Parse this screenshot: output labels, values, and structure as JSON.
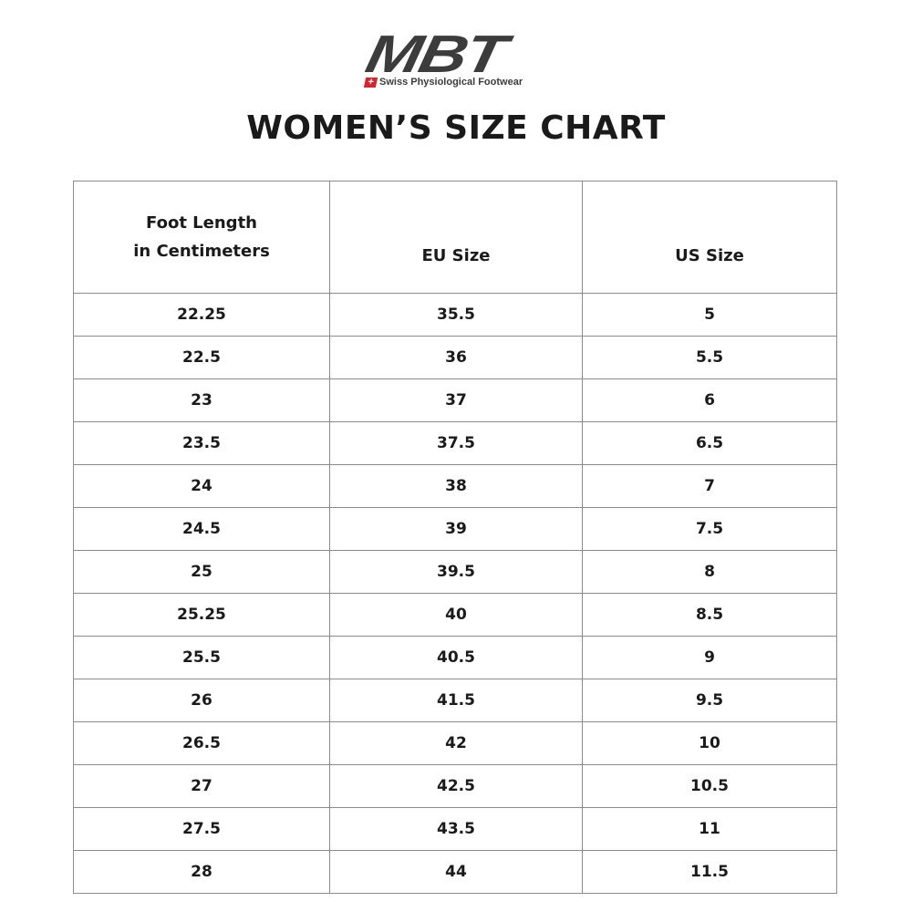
{
  "logo": {
    "brand": "MBT",
    "tagline": "Swiss Physiological Footwear",
    "flag_color": "#d9232d"
  },
  "title": "WOMEN’S SIZE CHART",
  "table": {
    "headers": {
      "foot_length_line1": "Foot Length",
      "foot_length_line2": "in Centimeters",
      "eu": "EU Size",
      "us": "US Size"
    },
    "rows": [
      [
        "22.25",
        "35.5",
        "5"
      ],
      [
        "22.5",
        "36",
        "5.5"
      ],
      [
        "23",
        "37",
        "6"
      ],
      [
        "23.5",
        "37.5",
        "6.5"
      ],
      [
        "24",
        "38",
        "7"
      ],
      [
        "24.5",
        "39",
        "7.5"
      ],
      [
        "25",
        "39.5",
        "8"
      ],
      [
        "25.25",
        "40",
        "8.5"
      ],
      [
        "25.5",
        "40.5",
        "9"
      ],
      [
        "26",
        "41.5",
        "9.5"
      ],
      [
        "26.5",
        "42",
        "10"
      ],
      [
        "27",
        "42.5",
        "10.5"
      ],
      [
        "27.5",
        "43.5",
        "11"
      ],
      [
        "28",
        "44",
        "11.5"
      ]
    ]
  }
}
